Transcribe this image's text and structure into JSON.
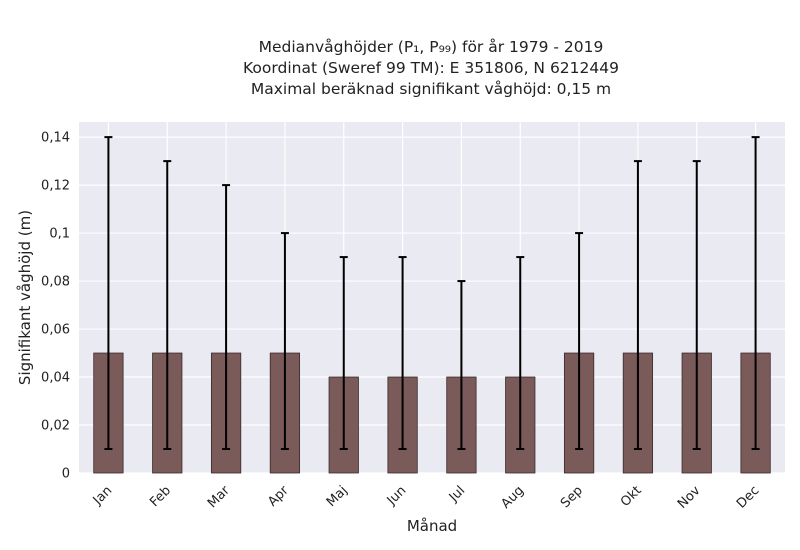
{
  "chart_data": {
    "type": "bar",
    "title_lines": [
      "Medianvåghöjder (P₁, P₉₉) för år 1979 - 2019",
      "Koordinat (Sweref 99 TM): E 351806, N 6212449",
      "Maximal beräknad signifikant våghöjd: 0,15 m"
    ],
    "xlabel": "Månad",
    "ylabel": "Signifikant våghöjd (m)",
    "categories": [
      "Jan",
      "Feb",
      "Mar",
      "Apr",
      "Maj",
      "Jun",
      "Jul",
      "Aug",
      "Sep",
      "Okt",
      "Nov",
      "Dec"
    ],
    "values": [
      0.05,
      0.05,
      0.05,
      0.05,
      0.04,
      0.04,
      0.04,
      0.04,
      0.05,
      0.05,
      0.05,
      0.05
    ],
    "error_low": [
      0.01,
      0.01,
      0.01,
      0.01,
      0.01,
      0.01,
      0.01,
      0.01,
      0.01,
      0.01,
      0.01,
      0.01
    ],
    "error_high": [
      0.14,
      0.13,
      0.12,
      0.1,
      0.09,
      0.09,
      0.08,
      0.09,
      0.1,
      0.13,
      0.13,
      0.14
    ],
    "ylim": [
      0,
      0.1463
    ],
    "yticks": [
      0,
      0.02,
      0.04,
      0.06,
      0.08,
      0.1,
      0.12,
      0.14
    ],
    "ytick_labels": [
      "0",
      "0,02",
      "0,04",
      "0,06",
      "0,08",
      "0,1",
      "0,12",
      "0,14"
    ],
    "grid": true,
    "colors": {
      "bar": "#7b5a5a",
      "bar_edge": "#3a2a2a",
      "plot_background": "#eaeaf2",
      "grid": "#ffffff",
      "error_bar": "#000000"
    }
  }
}
